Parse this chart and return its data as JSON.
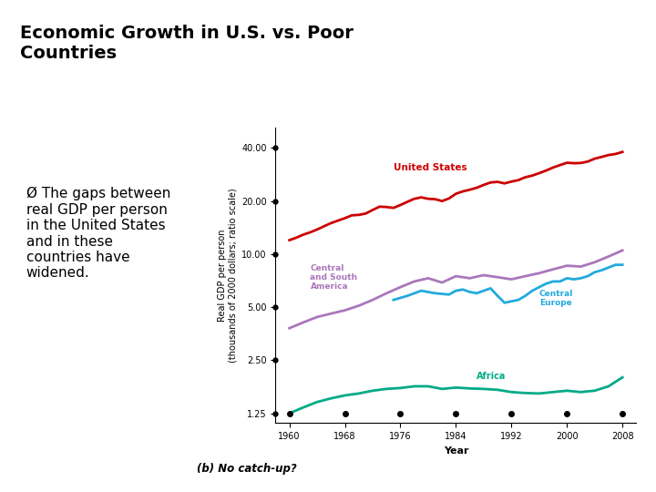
{
  "title": "Economic Growth in U.S. vs. Poor\nCountries",
  "bullet": "Ø The gaps between\nreal GDP per person\nin the United States\nand in these\ncountries have\nwidened.",
  "caption": "(b) No catch-up?",
  "xlabel": "Year",
  "ylabel": "Real GDP per person\n(thousands of 2000 dollars; ratio scale)",
  "years_ticks": [
    1960,
    1968,
    1976,
    1984,
    1992,
    2000,
    2008
  ],
  "us_x": [
    1960,
    1961,
    1962,
    1963,
    1964,
    1965,
    1966,
    1967,
    1968,
    1969,
    1970,
    1971,
    1972,
    1973,
    1974,
    1975,
    1976,
    1977,
    1978,
    1979,
    1980,
    1981,
    1982,
    1983,
    1984,
    1985,
    1986,
    1987,
    1988,
    1989,
    1990,
    1991,
    1992,
    1993,
    1994,
    1995,
    1996,
    1997,
    1998,
    1999,
    2000,
    2001,
    2002,
    2003,
    2004,
    2005,
    2006,
    2007,
    2008
  ],
  "us_y": [
    12.0,
    12.4,
    12.9,
    13.3,
    13.8,
    14.4,
    15.0,
    15.5,
    16.0,
    16.6,
    16.7,
    17.0,
    17.8,
    18.6,
    18.5,
    18.3,
    19.0,
    19.8,
    20.6,
    21.0,
    20.6,
    20.5,
    20.0,
    20.7,
    22.0,
    22.7,
    23.2,
    23.8,
    24.7,
    25.5,
    25.7,
    25.2,
    25.8,
    26.3,
    27.3,
    27.9,
    28.8,
    29.8,
    31.0,
    32.0,
    33.0,
    32.8,
    32.9,
    33.5,
    34.8,
    35.6,
    36.5,
    37.0,
    38.0
  ],
  "csa_x": [
    1960,
    1962,
    1964,
    1966,
    1968,
    1970,
    1972,
    1974,
    1976,
    1978,
    1980,
    1982,
    1984,
    1986,
    1988,
    1990,
    1992,
    1994,
    1996,
    1998,
    2000,
    2002,
    2004,
    2006,
    2008
  ],
  "csa_y": [
    3.8,
    4.1,
    4.4,
    4.6,
    4.8,
    5.1,
    5.5,
    6.0,
    6.5,
    7.0,
    7.3,
    6.9,
    7.5,
    7.3,
    7.6,
    7.4,
    7.2,
    7.5,
    7.8,
    8.2,
    8.6,
    8.5,
    9.0,
    9.7,
    10.5
  ],
  "ce_x": [
    1975,
    1977,
    1979,
    1981,
    1983,
    1984,
    1985,
    1986,
    1987,
    1988,
    1989,
    1990,
    1991,
    1992,
    1993,
    1994,
    1995,
    1996,
    1997,
    1998,
    1999,
    2000,
    2001,
    2002,
    2003,
    2004,
    2005,
    2006,
    2007,
    2008
  ],
  "ce_y": [
    5.5,
    5.8,
    6.2,
    6.0,
    5.9,
    6.2,
    6.3,
    6.1,
    6.0,
    6.2,
    6.4,
    5.8,
    5.3,
    5.4,
    5.5,
    5.8,
    6.2,
    6.5,
    6.8,
    7.0,
    7.0,
    7.3,
    7.2,
    7.3,
    7.5,
    7.9,
    8.1,
    8.4,
    8.7,
    8.7
  ],
  "africa_x": [
    1960,
    1962,
    1964,
    1966,
    1968,
    1970,
    1972,
    1974,
    1976,
    1978,
    1980,
    1982,
    1984,
    1986,
    1988,
    1990,
    1992,
    1994,
    1996,
    1998,
    2000,
    2002,
    2004,
    2006,
    2008
  ],
  "africa_y": [
    1.25,
    1.35,
    1.45,
    1.52,
    1.58,
    1.62,
    1.68,
    1.72,
    1.74,
    1.78,
    1.78,
    1.72,
    1.75,
    1.73,
    1.72,
    1.7,
    1.65,
    1.63,
    1.62,
    1.65,
    1.68,
    1.65,
    1.68,
    1.78,
    2.0
  ],
  "colors": {
    "us": "#cc0000",
    "csa": "#aa77bb",
    "ce": "#22aadd",
    "africa": "#00aa88"
  },
  "yticks": [
    1.25,
    2.5,
    5.0,
    10.0,
    20.0,
    40.0
  ],
  "ytick_labels": [
    "1.25",
    "2.50",
    "5.00",
    "10.00",
    "20.00",
    "40.00"
  ],
  "background_color": "#ffffff",
  "title_fontsize": 14,
  "bullet_fontsize": 11,
  "axis_label_fontsize": 7,
  "tick_fontsize": 7
}
